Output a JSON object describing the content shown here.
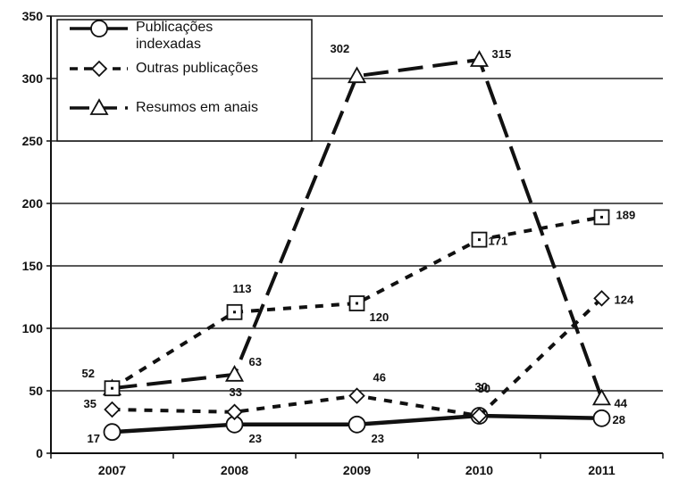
{
  "chart_data": {
    "type": "line",
    "categories": [
      "2007",
      "2008",
      "2009",
      "2010",
      "2011"
    ],
    "ylim": [
      0,
      350
    ],
    "yticks": [
      "0",
      "50",
      "100",
      "150",
      "200",
      "250",
      "300",
      "350"
    ],
    "grid": true,
    "legend_position": "top-left",
    "series": [
      {
        "name": "Publicações indexadas",
        "name_lines": [
          "Publicações",
          "indexadas"
        ],
        "marker": "circle",
        "dash": "solid",
        "values": [
          17,
          23,
          23,
          30,
          28
        ],
        "labels": [
          "17",
          "23",
          "23",
          "30",
          "28"
        ]
      },
      {
        "name": "Outras publicações",
        "name_lines": [
          "Outras publicações"
        ],
        "marker": "diamond",
        "dash": "short",
        "values": [
          35,
          33,
          46,
          30,
          124
        ],
        "labels": [
          "35",
          "33",
          "46",
          "30",
          "124"
        ]
      },
      {
        "name": "Resumos em anais",
        "name_lines": [
          "Resumos em anais"
        ],
        "marker": "triangle",
        "dash": "long",
        "values": [
          52,
          63,
          302,
          315,
          44
        ],
        "labels": [
          "52",
          "63",
          "302",
          "315",
          "44"
        ]
      },
      {
        "name": "",
        "marker": "square",
        "dash": "short",
        "values": [
          52,
          113,
          120,
          171,
          189
        ],
        "labels": [
          "",
          "113",
          "120",
          "171",
          "189"
        ]
      }
    ]
  }
}
